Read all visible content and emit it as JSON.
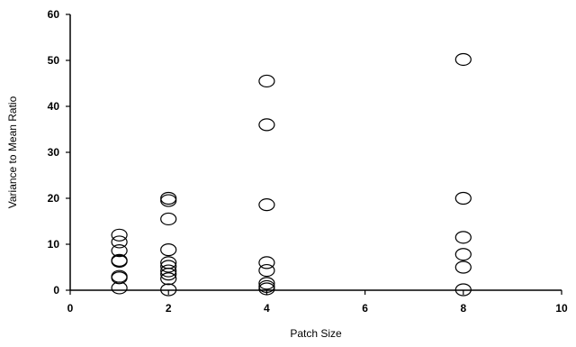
{
  "chart_data": {
    "type": "scatter",
    "title": "",
    "xlabel": "Patch Size",
    "ylabel": "Variance to Mean Ratio",
    "xlim": [
      0,
      10
    ],
    "ylim": [
      0,
      60
    ],
    "x_ticks": [
      "0",
      "2",
      "4",
      "6",
      "8",
      "10"
    ],
    "y_ticks": [
      "0",
      "10",
      "20",
      "30",
      "40",
      "50",
      "60"
    ],
    "grid": false,
    "marker": "open-circle",
    "series": [
      {
        "points": [
          {
            "x": 1,
            "y": 0.5
          },
          {
            "x": 1,
            "y": 2.7
          },
          {
            "x": 1,
            "y": 3.0
          },
          {
            "x": 1,
            "y": 6.3
          },
          {
            "x": 1,
            "y": 6.5
          },
          {
            "x": 1,
            "y": 8.6
          },
          {
            "x": 1,
            "y": 10.5
          },
          {
            "x": 1,
            "y": 12.0
          },
          {
            "x": 2,
            "y": 0.1
          },
          {
            "x": 2,
            "y": 2.5
          },
          {
            "x": 2,
            "y": 3.5
          },
          {
            "x": 2,
            "y": 4.2
          },
          {
            "x": 2,
            "y": 5.2
          },
          {
            "x": 2,
            "y": 6.0
          },
          {
            "x": 2,
            "y": 8.8
          },
          {
            "x": 2,
            "y": 15.5
          },
          {
            "x": 2,
            "y": 19.5
          },
          {
            "x": 2,
            "y": 20.0
          },
          {
            "x": 4,
            "y": 0.3
          },
          {
            "x": 4,
            "y": 0.8
          },
          {
            "x": 4,
            "y": 1.5
          },
          {
            "x": 4,
            "y": 4.3
          },
          {
            "x": 4,
            "y": 6.0
          },
          {
            "x": 4,
            "y": 18.6
          },
          {
            "x": 4,
            "y": 36.0
          },
          {
            "x": 4,
            "y": 45.5
          },
          {
            "x": 8,
            "y": 0.1
          },
          {
            "x": 8,
            "y": 5.0
          },
          {
            "x": 8,
            "y": 7.8
          },
          {
            "x": 8,
            "y": 11.5
          },
          {
            "x": 8,
            "y": 20.0
          },
          {
            "x": 8,
            "y": 50.2
          }
        ]
      }
    ]
  }
}
